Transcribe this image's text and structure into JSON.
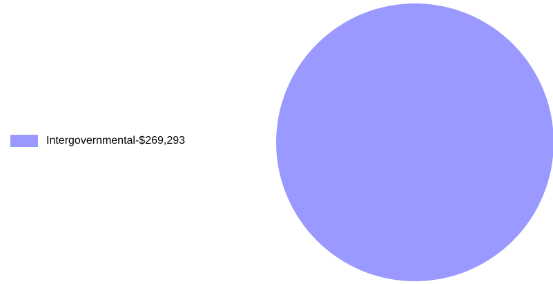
{
  "chart_data": {
    "type": "pie",
    "title": "",
    "legend_position": "left",
    "slices": [
      {
        "label": "Intergovernmental-$269,293",
        "value": 269293,
        "color": "#9999ff"
      }
    ]
  }
}
